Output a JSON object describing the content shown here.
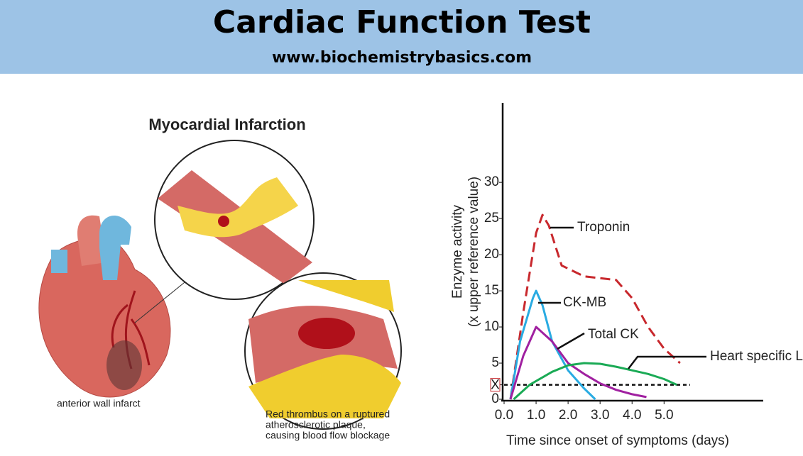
{
  "header": {
    "title": "Cardiac Function Test",
    "subtitle": "www.biochemistrybasics.com"
  },
  "illustration": {
    "title": "Myocardial Infarction",
    "heart_label": "anterior wall infarct",
    "caption": [
      "Red thrombus on a ruptured",
      "atherosclerotic plaque,",
      "causing blood flow blockage"
    ]
  },
  "chart_data": {
    "type": "line",
    "xlabel": "Time since onset of symptoms (days)",
    "ylabel": [
      "Enzyme activity",
      "(x upper reference value)"
    ],
    "xlim": [
      0,
      8.1
    ],
    "ylim": [
      0,
      41
    ],
    "xticks": [
      {
        "value": 0,
        "label": "0.0"
      },
      {
        "value": 1,
        "label": "1.0"
      },
      {
        "value": 2,
        "label": "2.0"
      },
      {
        "value": 3,
        "label": "3.0"
      },
      {
        "value": 4,
        "label": "4.0"
      },
      {
        "value": 5,
        "label": "5.0"
      }
    ],
    "yticks": [
      0,
      {
        "value": 2,
        "label": "X"
      },
      5,
      10,
      15,
      20,
      25,
      30
    ],
    "series": [
      {
        "name": "Troponin",
        "color": "#c8282d",
        "dashed": true,
        "x": [
          0.2,
          0.6,
          1.0,
          1.2,
          1.4,
          1.8,
          2.5,
          3.5,
          4.0,
          4.5,
          5.0,
          5.5
        ],
        "values": [
          0,
          12,
          23,
          25.5,
          24,
          18.5,
          17,
          16.5,
          14,
          10,
          7,
          5
        ]
      },
      {
        "name": "CK-MB",
        "color": "#29abe2",
        "dashed": false,
        "x": [
          0.2,
          0.5,
          0.9,
          1.0,
          1.2,
          1.5,
          2.0,
          2.5,
          2.85
        ],
        "values": [
          0,
          8,
          14,
          15,
          13,
          8,
          4,
          1.5,
          0
        ]
      },
      {
        "name": "Total CK",
        "color": "#a020a0",
        "dashed": false,
        "x": [
          0.2,
          0.6,
          1.0,
          1.5,
          2.0,
          2.5,
          3.0,
          3.5,
          4.0,
          4.45
        ],
        "values": [
          0,
          6,
          10,
          8,
          5,
          3.5,
          2.2,
          1.3,
          0.7,
          0.3
        ]
      },
      {
        "name": "Heart specific LDH",
        "color": "#1aaa55",
        "dashed": false,
        "x": [
          0.3,
          0.8,
          1.5,
          2.0,
          2.5,
          3.0,
          3.5,
          4.0,
          4.5,
          5.0,
          5.4
        ],
        "values": [
          0,
          2,
          3.8,
          4.7,
          5,
          4.9,
          4.5,
          4,
          3.5,
          2.8,
          2
        ]
      }
    ]
  }
}
